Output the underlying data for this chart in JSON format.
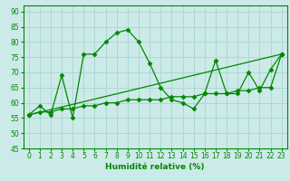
{
  "xlabel": "Humidité relative (%)",
  "xlim": [
    -0.5,
    23.5
  ],
  "ylim": [
    45,
    92
  ],
  "yticks": [
    45,
    50,
    55,
    60,
    65,
    70,
    75,
    80,
    85,
    90
  ],
  "xticks": [
    0,
    1,
    2,
    3,
    4,
    5,
    6,
    7,
    8,
    9,
    10,
    11,
    12,
    13,
    14,
    15,
    16,
    17,
    18,
    19,
    20,
    21,
    22,
    23
  ],
  "bg_color": "#cceae8",
  "grid_color": "#aad8d5",
  "line_color": "#008800",
  "main_y": [
    56,
    59,
    56,
    69,
    55,
    76,
    76,
    80,
    83,
    84,
    80,
    73,
    65,
    61,
    60,
    58,
    63,
    74,
    63,
    63,
    70,
    64,
    71,
    76
  ],
  "line3_y": [
    56,
    57,
    57,
    58,
    58,
    59,
    59,
    60,
    60,
    61,
    61,
    61,
    61,
    62,
    62,
    62,
    63,
    63,
    63,
    64,
    64,
    65,
    65,
    76
  ]
}
